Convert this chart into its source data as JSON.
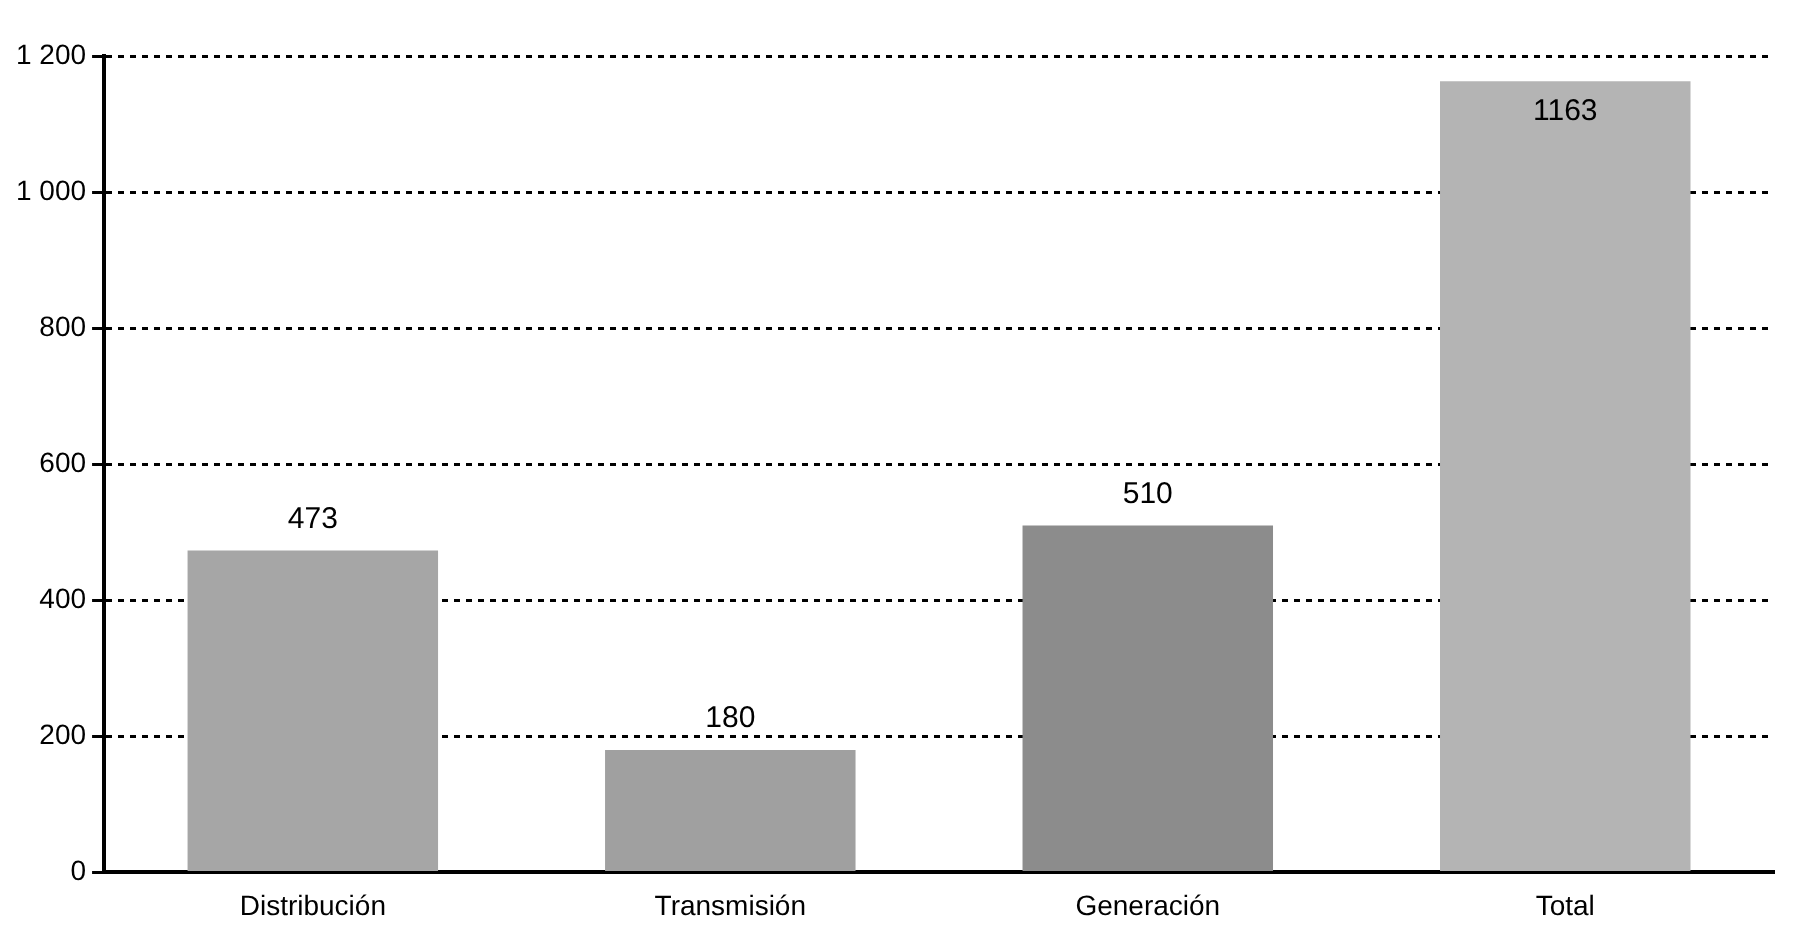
{
  "chart_data": {
    "type": "bar",
    "categories": [
      "Distribución",
      "Transmisión",
      "Generación",
      "Total"
    ],
    "values": [
      473,
      180,
      510,
      1163
    ],
    "colors": [
      "#a6a6a6",
      "#a0a0a0",
      "#8c8c8c",
      "#b4b4b4"
    ],
    "ylim": [
      0,
      1200
    ],
    "yticks": [
      0,
      200,
      400,
      600,
      800,
      {
        "value": 1000,
        "label": "1 000"
      },
      {
        "value": 1200,
        "label": "1 200"
      }
    ],
    "grid": "y",
    "line_style": "dotted",
    "data_labels": true,
    "legend": false
  }
}
